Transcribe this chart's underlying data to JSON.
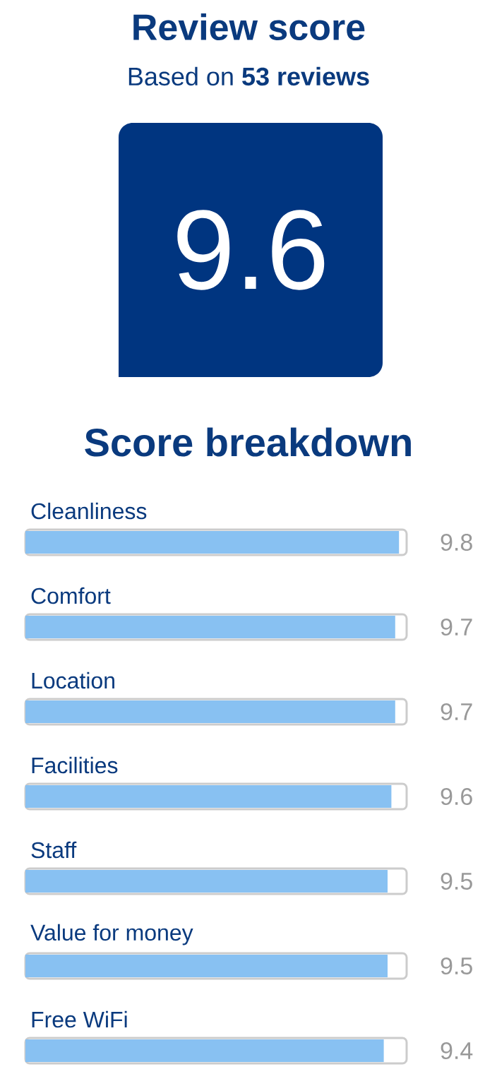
{
  "chart_data": {
    "type": "bar",
    "orientation": "horizontal",
    "title": "Review score",
    "subtitle": "Based on **53 reviews**",
    "annotations": [
      "9.6",
      "Score breakdown"
    ],
    "categories": [
      "Cleanliness",
      "Comfort",
      "Location",
      "Facilities",
      "Staff",
      "Value for money",
      "Free WiFi"
    ],
    "values": [
      9.8,
      9.7,
      9.7,
      9.6,
      9.5,
      9.5,
      9.4
    ],
    "color": "#88c1f2",
    "xlim": [
      0,
      10
    ],
    "data_labels": true
  }
}
